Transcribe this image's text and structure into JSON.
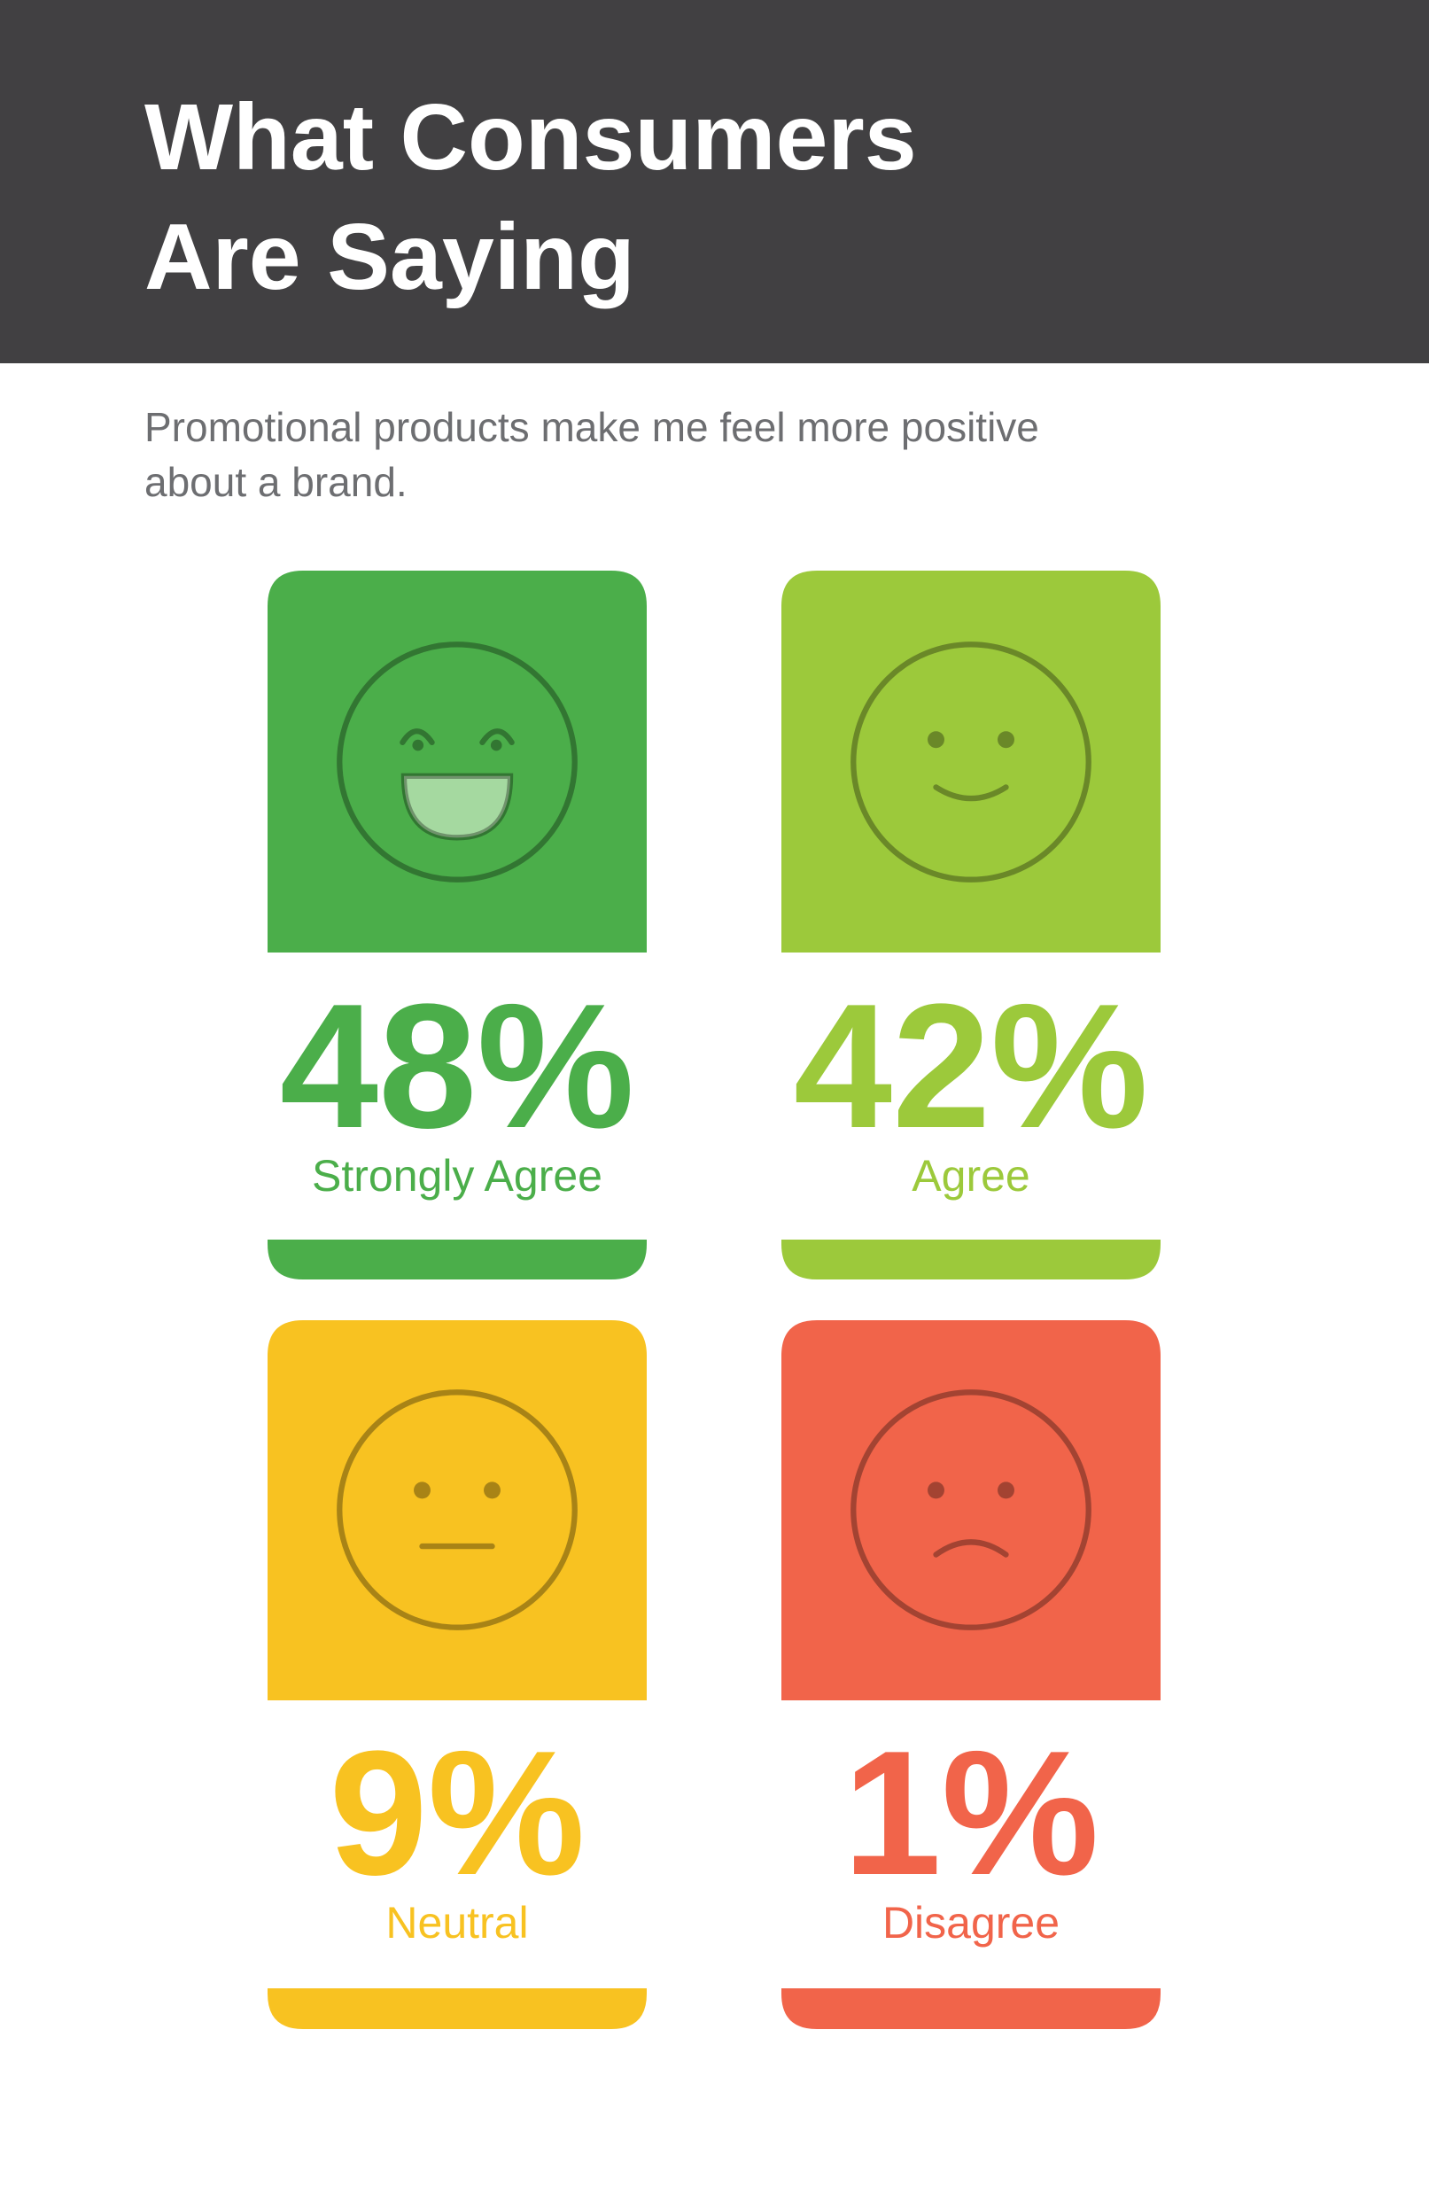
{
  "header": {
    "title_lines": [
      "What Consumers",
      "Are Saying"
    ]
  },
  "subtitle_lines": [
    "Promotional products make me feel more positive",
    "about a brand."
  ],
  "items": [
    {
      "percent": "48%",
      "label": "Strongly Agree"
    },
    {
      "percent": "42%",
      "label": "Agree"
    },
    {
      "percent": "9%",
      "label": "Neutral"
    },
    {
      "percent": "1%",
      "label": "Disagree"
    }
  ]
}
